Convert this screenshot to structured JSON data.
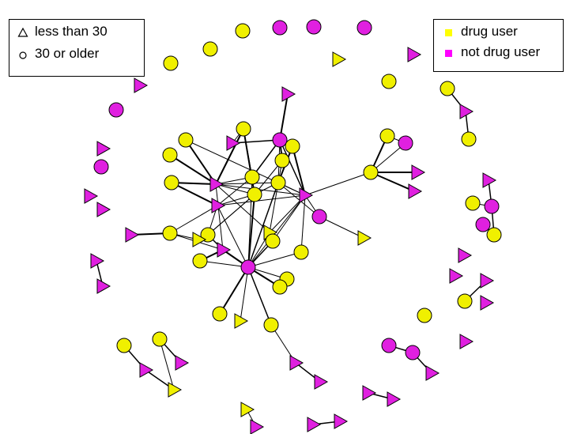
{
  "legend_shape": {
    "entries": [
      {
        "label": "less than 30",
        "symbol": "triangle-outline-icon"
      },
      {
        "label": "30 or older",
        "symbol": "circle-outline-icon"
      }
    ]
  },
  "legend_color": {
    "entries": [
      {
        "label": "drug user",
        "color": "#ffff00"
      },
      {
        "label": "not drug user",
        "color": "#ff00ff"
      }
    ]
  },
  "colors": {
    "drug_user": "#ffff00",
    "drug_user_network": "#f0f000",
    "not_drug_user": "#e020e0",
    "edge": "#000000"
  }
}
